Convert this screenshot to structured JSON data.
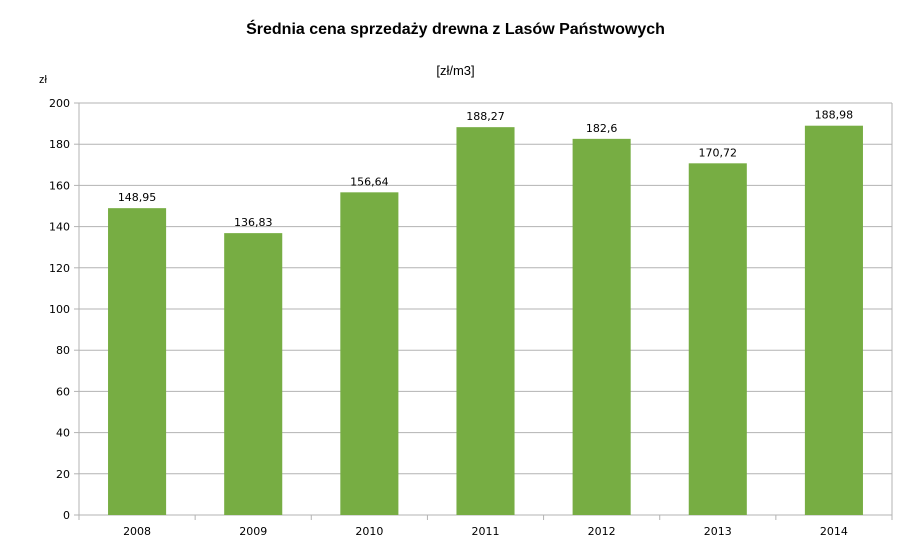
{
  "chart_data": {
    "type": "bar",
    "title": "Średnia cena sprzedaży drewna z Lasów Państwowych",
    "subtitle": "[zł/m3]",
    "ylabel": "zł",
    "xlabel": "",
    "categories": [
      "2008",
      "2009",
      "2010",
      "2011",
      "2012",
      "2013",
      "2014"
    ],
    "values": [
      148.95,
      136.83,
      156.64,
      188.27,
      182.6,
      170.72,
      188.98
    ],
    "value_labels": [
      "148,95",
      "136,83",
      "156,64",
      "188,27",
      "182,6",
      "170,72",
      "188,98"
    ],
    "ylim": [
      0,
      200
    ],
    "yticks": [
      0,
      20,
      40,
      60,
      80,
      100,
      120,
      140,
      160,
      180,
      200
    ],
    "grid": true,
    "legend": "none",
    "bar_color": "#77AD43",
    "grid_color": "#B3B3B3"
  }
}
